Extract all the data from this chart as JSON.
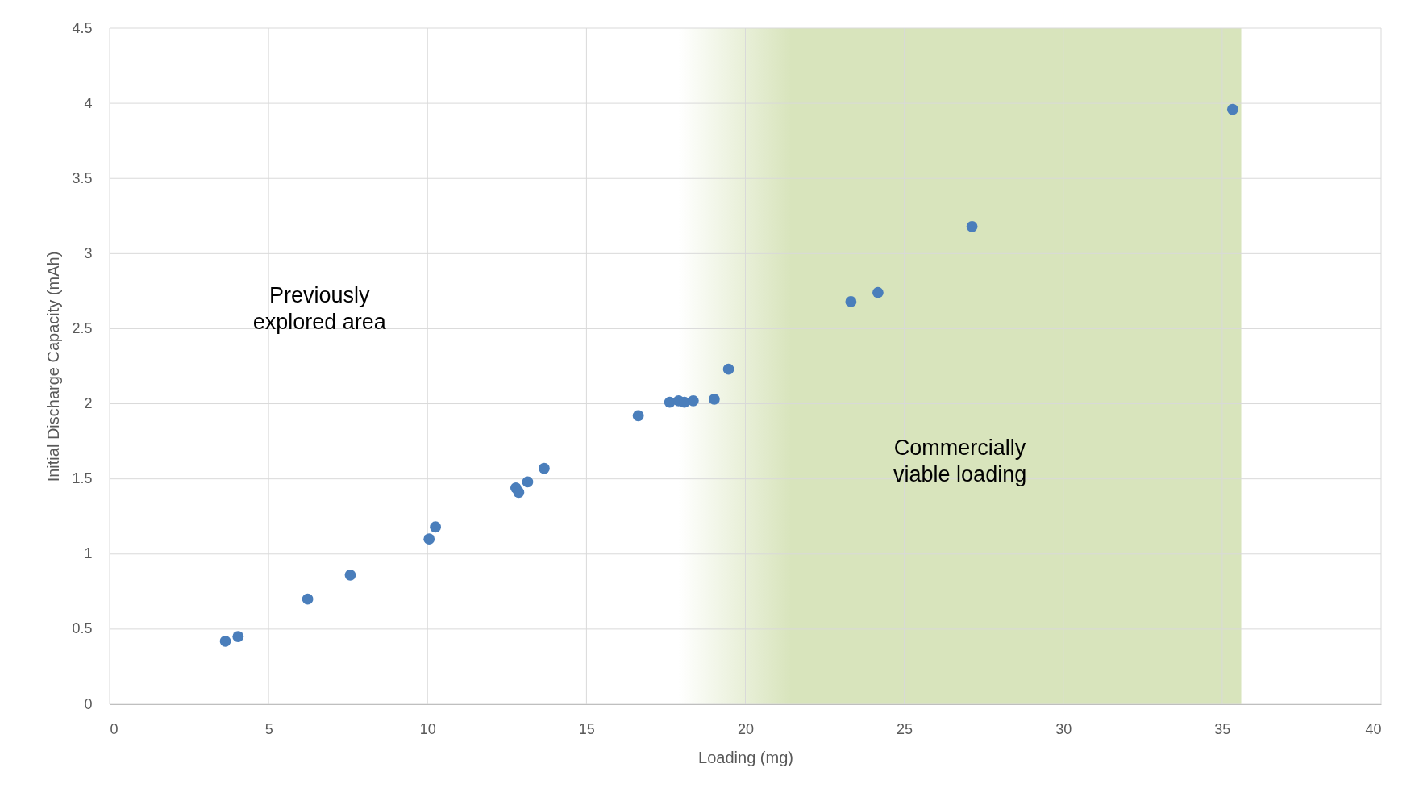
{
  "chart_data": {
    "type": "scatter",
    "xlabel": "Loading (mg)",
    "ylabel": "Initial Discharge Capacity (mAh)",
    "x": [
      3.64,
      4.04,
      6.23,
      7.57,
      10.05,
      10.25,
      12.78,
      12.87,
      13.15,
      13.67,
      16.63,
      17.62,
      17.9,
      18.08,
      18.36,
      19.02,
      19.47,
      23.32,
      24.17,
      27.13,
      35.33
    ],
    "series": [
      {
        "color": "#4a7ebb",
        "values": [
          0.42,
          0.45,
          0.7,
          0.86,
          1.1,
          1.18,
          1.44,
          1.41,
          1.48,
          1.57,
          1.92,
          2.01,
          2.02,
          2.01,
          2.02,
          2.03,
          2.23,
          2.68,
          2.74,
          3.18,
          3.96
        ]
      }
    ],
    "xlim": [
      0,
      40
    ],
    "xticks": [
      0,
      5,
      10,
      15,
      20,
      25,
      30,
      35,
      40
    ],
    "ylim": [
      0,
      4.5
    ],
    "yticks": [
      0,
      0.5,
      1,
      1.5,
      2,
      2.5,
      3,
      3.5,
      4,
      4.5
    ],
    "grid": true,
    "marker": "circle",
    "bands": [
      {
        "axis": "x",
        "from": 17.9,
        "to": 35.6,
        "label": "Commercially viable loading",
        "color": "#d8e4bc"
      }
    ],
    "annotations": [
      "Previously explored area"
    ]
  }
}
